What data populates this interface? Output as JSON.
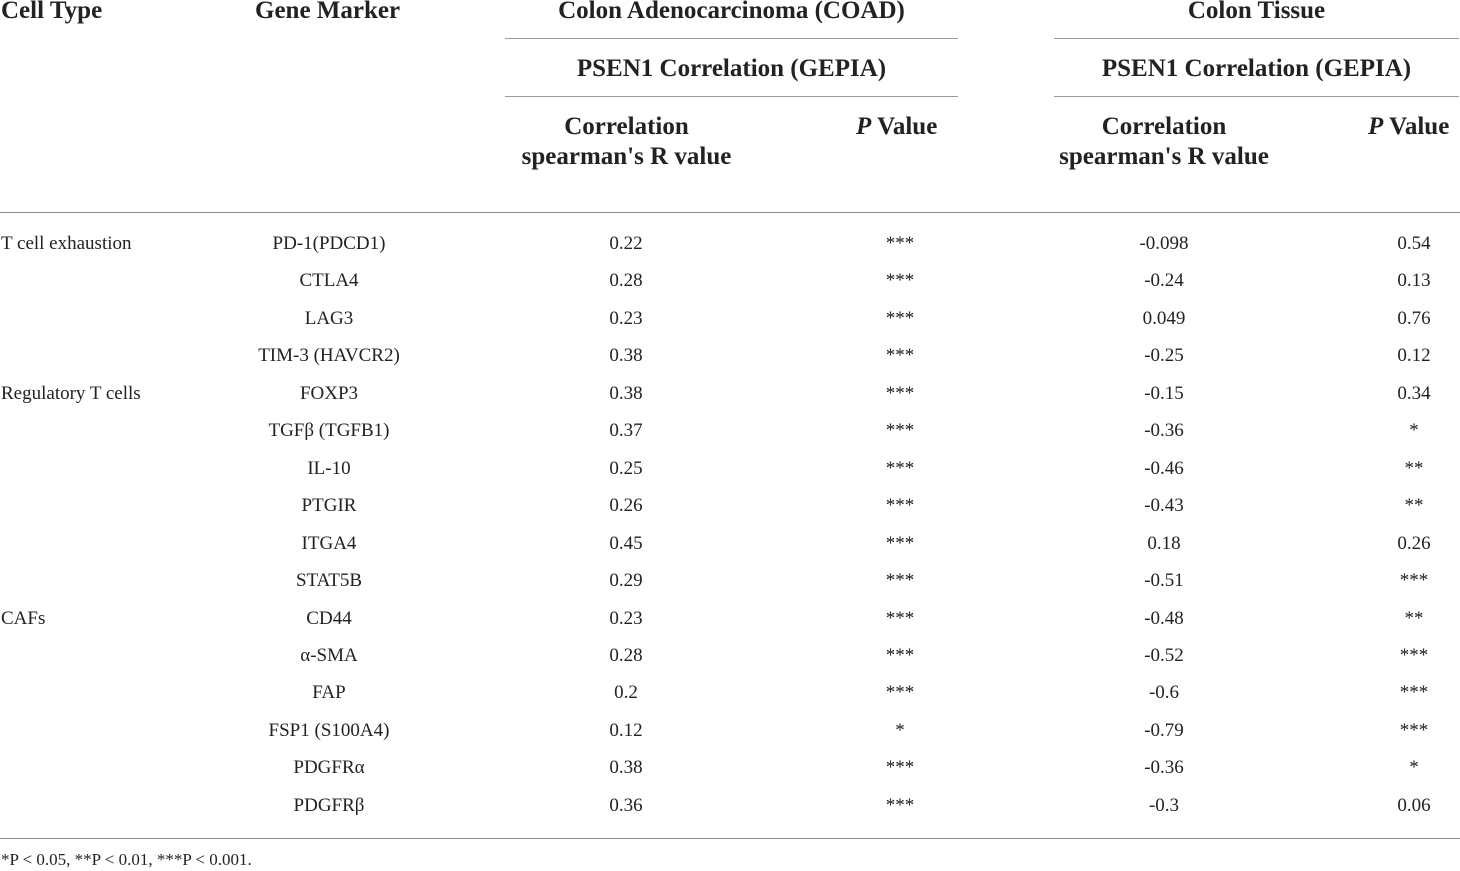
{
  "headers": {
    "cell_type": "Cell Type",
    "gene_marker": "Gene Marker",
    "group1_title": "Colon Adenocarcinoma (COAD)",
    "group1_sub": "PSEN1 Correlation (GEPIA)",
    "group1_r_line1": "Correlation",
    "group1_r_line2": "spearman's R value",
    "group1_p_italic": "P",
    "group1_p_rest": " Value",
    "group2_title": "Colon Tissue",
    "group2_sub": "PSEN1 Correlation (GEPIA)",
    "group2_r_line1": "Correlation",
    "group2_r_line2": "spearman's R value",
    "group2_p_italic": "P",
    "group2_p_rest": " Value"
  },
  "rows": [
    {
      "cell_type": "T cell exhaustion",
      "gene": "PD-1(PDCD1)",
      "r1": "0.22",
      "p1": "***",
      "r2": "-0.098",
      "p2": "0.54"
    },
    {
      "cell_type": "",
      "gene": "CTLA4",
      "r1": "0.28",
      "p1": "***",
      "r2": "-0.24",
      "p2": "0.13"
    },
    {
      "cell_type": "",
      "gene": "LAG3",
      "r1": "0.23",
      "p1": "***",
      "r2": "0.049",
      "p2": "0.76"
    },
    {
      "cell_type": "",
      "gene": "TIM-3 (HAVCR2)",
      "r1": "0.38",
      "p1": "***",
      "r2": "-0.25",
      "p2": "0.12"
    },
    {
      "cell_type": "Regulatory T cells",
      "gene": "FOXP3",
      "r1": "0.38",
      "p1": "***",
      "r2": "-0.15",
      "p2": "0.34"
    },
    {
      "cell_type": "",
      "gene": "TGFβ (TGFB1)",
      "r1": "0.37",
      "p1": "***",
      "r2": "-0.36",
      "p2": "*"
    },
    {
      "cell_type": "",
      "gene": "IL-10",
      "r1": "0.25",
      "p1": "***",
      "r2": "-0.46",
      "p2": "**"
    },
    {
      "cell_type": "",
      "gene": "PTGIR",
      "r1": "0.26",
      "p1": "***",
      "r2": "-0.43",
      "p2": "**"
    },
    {
      "cell_type": "",
      "gene": "ITGA4",
      "r1": "0.45",
      "p1": "***",
      "r2": "0.18",
      "p2": "0.26"
    },
    {
      "cell_type": "",
      "gene": "STAT5B",
      "r1": "0.29",
      "p1": "***",
      "r2": "-0.51",
      "p2": "***"
    },
    {
      "cell_type": "CAFs",
      "gene": "CD44",
      "r1": "0.23",
      "p1": "***",
      "r2": "-0.48",
      "p2": "**"
    },
    {
      "cell_type": "",
      "gene": "α-SMA",
      "r1": "0.28",
      "p1": "***",
      "r2": "-0.52",
      "p2": "***"
    },
    {
      "cell_type": "",
      "gene": "FAP",
      "r1": "0.2",
      "p1": "***",
      "r2": "-0.6",
      "p2": "***"
    },
    {
      "cell_type": "",
      "gene": "FSP1 (S100A4)",
      "r1": "0.12",
      "p1": "*",
      "r2": "-0.79",
      "p2": "***"
    },
    {
      "cell_type": "",
      "gene": "PDGFRα",
      "r1": "0.38",
      "p1": "***",
      "r2": "-0.36",
      "p2": "*"
    },
    {
      "cell_type": "",
      "gene": "PDGFRβ",
      "r1": "0.36",
      "p1": "***",
      "r2": "-0.3",
      "p2": "0.06"
    }
  ],
  "footnote": "*P < 0.05, **P < 0.01, ***P < 0.001."
}
